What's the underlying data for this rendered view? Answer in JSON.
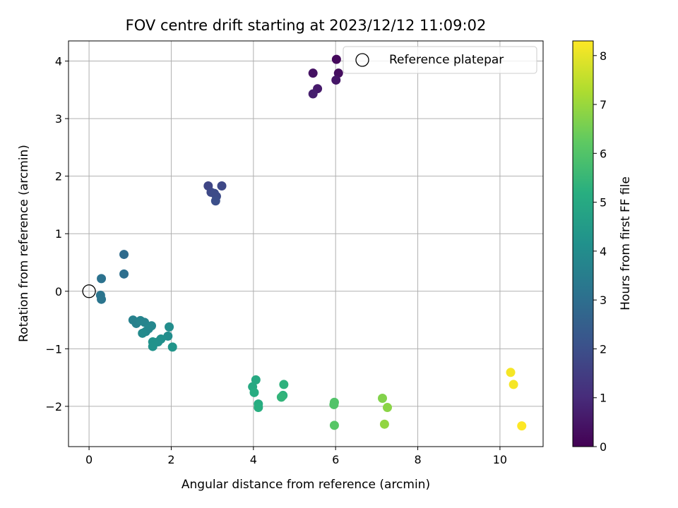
{
  "chart_data": {
    "type": "scatter",
    "title": "FOV centre drift starting at 2023/12/12 11:09:02",
    "xlabel": "Angular distance from reference (arcmin)",
    "ylabel": "Rotation from reference (arcmin)",
    "xlim": [
      -0.5,
      11.05
    ],
    "ylim": [
      -2.7,
      4.35
    ],
    "xticks": [
      0,
      2,
      4,
      6,
      8,
      10
    ],
    "yticks": [
      -2,
      -1,
      0,
      1,
      2,
      3,
      4
    ],
    "grid": true,
    "legend": {
      "position": "top-right",
      "entries": [
        "Reference platepar"
      ]
    },
    "reference": {
      "x": 0,
      "y": 0
    },
    "colorbar": {
      "label": "Hours from first FF file",
      "range": [
        0,
        8.3
      ],
      "ticks": [
        0,
        1,
        2,
        3,
        4,
        5,
        6,
        7,
        8
      ],
      "colormap": "viridis"
    },
    "points": [
      {
        "x": 6.02,
        "y": 4.03,
        "hours": 0.2
      },
      {
        "x": 6.07,
        "y": 3.79,
        "hours": 0.3
      },
      {
        "x": 5.45,
        "y": 3.79,
        "hours": 0.4
      },
      {
        "x": 6.01,
        "y": 3.67,
        "hours": 0.5
      },
      {
        "x": 5.56,
        "y": 3.52,
        "hours": 0.6
      },
      {
        "x": 5.45,
        "y": 3.43,
        "hours": 0.7
      },
      {
        "x": 2.9,
        "y": 1.83,
        "hours": 1.7
      },
      {
        "x": 3.23,
        "y": 1.83,
        "hours": 1.8
      },
      {
        "x": 2.97,
        "y": 1.72,
        "hours": 1.8
      },
      {
        "x": 3.05,
        "y": 1.7,
        "hours": 1.9
      },
      {
        "x": 3.1,
        "y": 1.65,
        "hours": 1.9
      },
      {
        "x": 3.08,
        "y": 1.57,
        "hours": 2.0
      },
      {
        "x": 0.85,
        "y": 0.64,
        "hours": 2.9
      },
      {
        "x": 0.85,
        "y": 0.3,
        "hours": 3.0
      },
      {
        "x": 0.3,
        "y": 0.22,
        "hours": 3.1
      },
      {
        "x": 0.28,
        "y": -0.07,
        "hours": 3.2
      },
      {
        "x": 0.3,
        "y": -0.14,
        "hours": 3.2
      },
      {
        "x": 1.07,
        "y": -0.5,
        "hours": 3.6
      },
      {
        "x": 1.15,
        "y": -0.56,
        "hours": 3.6
      },
      {
        "x": 1.25,
        "y": -0.51,
        "hours": 3.7
      },
      {
        "x": 1.35,
        "y": -0.54,
        "hours": 3.7
      },
      {
        "x": 1.52,
        "y": -0.6,
        "hours": 3.8
      },
      {
        "x": 1.45,
        "y": -0.65,
        "hours": 3.8
      },
      {
        "x": 1.38,
        "y": -0.7,
        "hours": 3.8
      },
      {
        "x": 1.3,
        "y": -0.73,
        "hours": 3.9
      },
      {
        "x": 1.95,
        "y": -0.62,
        "hours": 4.0
      },
      {
        "x": 1.92,
        "y": -0.78,
        "hours": 4.0
      },
      {
        "x": 1.75,
        "y": -0.83,
        "hours": 4.1
      },
      {
        "x": 1.68,
        "y": -0.88,
        "hours": 4.1
      },
      {
        "x": 1.55,
        "y": -0.88,
        "hours": 4.2
      },
      {
        "x": 1.55,
        "y": -0.96,
        "hours": 4.2
      },
      {
        "x": 2.03,
        "y": -0.97,
        "hours": 4.3
      },
      {
        "x": 4.06,
        "y": -1.54,
        "hours": 5.0
      },
      {
        "x": 3.98,
        "y": -1.66,
        "hours": 5.0
      },
      {
        "x": 4.02,
        "y": -1.76,
        "hours": 5.1
      },
      {
        "x": 4.12,
        "y": -1.96,
        "hours": 5.1
      },
      {
        "x": 4.12,
        "y": -2.02,
        "hours": 5.2
      },
      {
        "x": 4.74,
        "y": -1.62,
        "hours": 5.3
      },
      {
        "x": 4.72,
        "y": -1.81,
        "hours": 5.3
      },
      {
        "x": 4.68,
        "y": -1.84,
        "hours": 5.4
      },
      {
        "x": 5.97,
        "y": -1.93,
        "hours": 6.0
      },
      {
        "x": 5.96,
        "y": -1.97,
        "hours": 6.0
      },
      {
        "x": 5.97,
        "y": -2.33,
        "hours": 6.1
      },
      {
        "x": 7.14,
        "y": -1.86,
        "hours": 6.7
      },
      {
        "x": 7.26,
        "y": -2.02,
        "hours": 6.8
      },
      {
        "x": 7.19,
        "y": -2.31,
        "hours": 6.9
      },
      {
        "x": 10.26,
        "y": -1.41,
        "hours": 8.2
      },
      {
        "x": 10.33,
        "y": -1.62,
        "hours": 8.2
      },
      {
        "x": 10.53,
        "y": -2.34,
        "hours": 8.3
      }
    ]
  }
}
